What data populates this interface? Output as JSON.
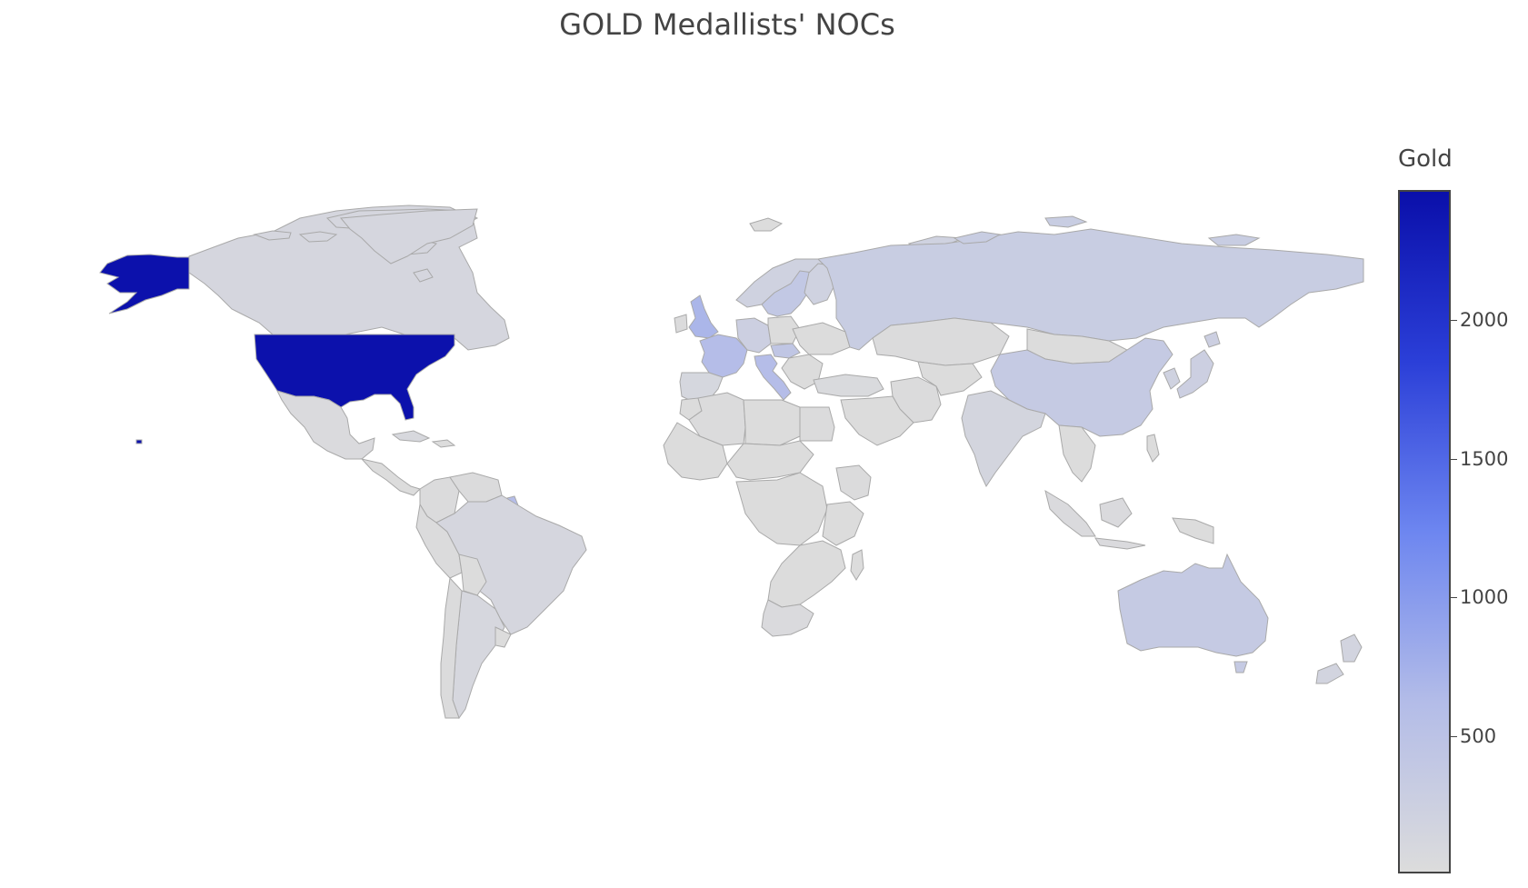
{
  "title": "GOLD Medallists' NOCs",
  "colorbar": {
    "title": "Gold",
    "min": 0,
    "max": 2500,
    "ticks": [
      "2000",
      "1500",
      "1000",
      "500"
    ],
    "scale": [
      "#dcdcdc",
      "#b3bce8",
      "#6d86f0",
      "#2b3fd8",
      "#0a0faa"
    ]
  },
  "no_data_color": "#dcdcdc",
  "map": {
    "countries": [
      {
        "name": "USA",
        "gold": 2470
      },
      {
        "name": "Alaska (USA)",
        "gold": 2470
      },
      {
        "name": "Hawaii (USA)",
        "gold": 2470
      },
      {
        "name": "Canada",
        "gold": 110
      },
      {
        "name": "Mexico",
        "gold": 30
      },
      {
        "name": "Cuba",
        "gold": 70
      },
      {
        "name": "Brazil",
        "gold": 110
      },
      {
        "name": "Argentina",
        "gold": 90
      },
      {
        "name": "Chile",
        "gold": 10
      },
      {
        "name": "Peru",
        "gold": 10
      },
      {
        "name": "Colombia",
        "gold": 10
      },
      {
        "name": "Venezuela",
        "gold": 10
      },
      {
        "name": "French Guiana (France)",
        "gold": 600
      },
      {
        "name": "United Kingdom",
        "gold": 700
      },
      {
        "name": "Ireland",
        "gold": 10
      },
      {
        "name": "France",
        "gold": 600
      },
      {
        "name": "Spain",
        "gold": 100
      },
      {
        "name": "Portugal",
        "gold": 10
      },
      {
        "name": "Italy",
        "gold": 600
      },
      {
        "name": "Germany",
        "gold": 250
      },
      {
        "name": "Sweden",
        "gold": 400
      },
      {
        "name": "Norway",
        "gold": 200
      },
      {
        "name": "Finland",
        "gold": 200
      },
      {
        "name": "Hungary",
        "gold": 430
      },
      {
        "name": "Russia",
        "gold": 300
      },
      {
        "name": "China",
        "gold": 350
      },
      {
        "name": "Japan",
        "gold": 250
      },
      {
        "name": "South Korea",
        "gold": 200
      },
      {
        "name": "Mongolia",
        "gold": 0
      },
      {
        "name": "Kazakhstan",
        "gold": 10
      },
      {
        "name": "India",
        "gold": 130
      },
      {
        "name": "Australia",
        "gold": 350
      },
      {
        "name": "New Zealand",
        "gold": 150
      },
      {
        "name": "Indonesia",
        "gold": 30
      },
      {
        "name": "Philippines",
        "gold": 0
      },
      {
        "name": "Papua New Guinea",
        "gold": 0
      },
      {
        "name": "Greenland (Denmark)",
        "gold": 110
      },
      {
        "name": "Iceland",
        "gold": 0
      },
      {
        "name": "Svalbard (Norway)",
        "gold": 200
      },
      {
        "name": "Algeria",
        "gold": 10
      },
      {
        "name": "Egypt",
        "gold": 10
      },
      {
        "name": "Ethiopia",
        "gold": 20
      },
      {
        "name": "South Africa",
        "gold": 30
      },
      {
        "name": "Iran",
        "gold": 20
      },
      {
        "name": "Turkey",
        "gold": 40
      }
    ]
  }
}
